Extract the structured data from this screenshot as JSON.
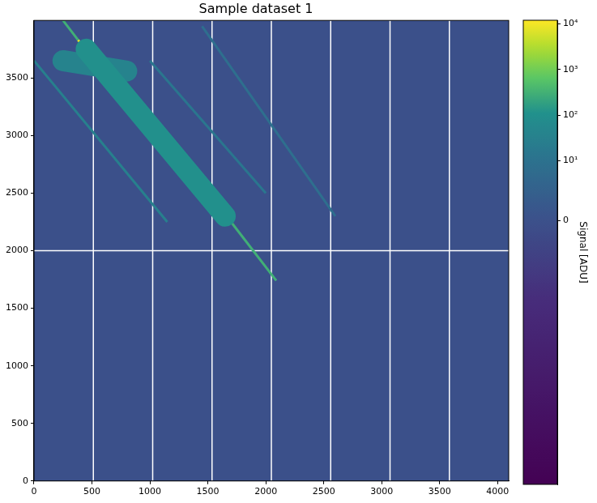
{
  "chart_data": {
    "type": "heatmap",
    "title": "Sample dataset 1",
    "xlim": [
      0,
      4096
    ],
    "ylim": [
      0,
      4000
    ],
    "xticks": [
      0,
      500,
      1000,
      1500,
      2000,
      2500,
      3000,
      3500,
      4000
    ],
    "yticks": [
      0,
      500,
      1000,
      1500,
      2000,
      2500,
      3000,
      3500
    ],
    "grid": false,
    "background_signal": 0,
    "halos": [
      {
        "x": [
          450,
          1650
        ],
        "y": [
          3750,
          2300
        ],
        "signal": 100
      },
      {
        "x": [
          250,
          800
        ],
        "y": [
          3650,
          3560
        ],
        "signal": 40
      }
    ],
    "streaks": [
      {
        "x": [
          0,
          1150
        ],
        "y": [
          3650,
          2250
        ],
        "signal": 30
      },
      {
        "x": [
          1000,
          2000
        ],
        "y": [
          3650,
          2500
        ],
        "signal": 15
      },
      {
        "x": [
          1450,
          2600
        ],
        "y": [
          3950,
          2300
        ],
        "signal": 8
      },
      {
        "x": [
          250,
          380
        ],
        "y": [
          4000,
          3830
        ],
        "signal": 300
      },
      {
        "x": [
          1700,
          2090
        ],
        "y": [
          2250,
          1740
        ],
        "signal": 300
      },
      {
        "x": [
          380,
          1700
        ],
        "y": [
          3830,
          2250
        ],
        "signal": 10000
      }
    ],
    "gaps": {
      "x": [
        512,
        1024,
        1536,
        2048,
        2560,
        3072,
        3584
      ],
      "y": [
        2000
      ]
    },
    "colorbar": {
      "label": "Signal [ADU]",
      "range": [
        -300000,
        12000
      ],
      "ticks": [
        0,
        {
          "value": 10,
          "label": "10¹"
        },
        {
          "value": 100,
          "label": "10²"
        },
        {
          "value": 1000,
          "label": "10³"
        },
        {
          "value": 10000,
          "label": "10⁴"
        }
      ]
    }
  }
}
